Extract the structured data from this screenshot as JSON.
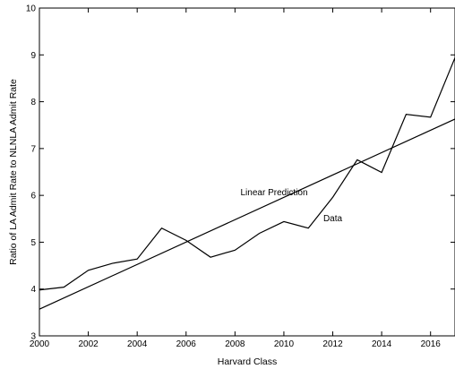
{
  "chart_data": {
    "type": "line",
    "xlabel": "Harvard Class",
    "ylabel": "Ratio of LA Admit Rate to NLNLA Admit Rate",
    "xlim": [
      2000,
      2017
    ],
    "ylim": [
      3,
      10
    ],
    "xticks": [
      "2000",
      "2002",
      "2004",
      "2006",
      "2008",
      "2010",
      "2012",
      "2014",
      "2016"
    ],
    "yticks": [
      "3",
      "4",
      "5",
      "6",
      "7",
      "8",
      "9",
      "10"
    ],
    "grid": false,
    "series": [
      {
        "name": "Data",
        "x": [
          2000,
          2001,
          2002,
          2003,
          2004,
          2005,
          2006,
          2007,
          2008,
          2009,
          2010,
          2011,
          2012,
          2013,
          2014,
          2015,
          2016,
          2017
        ],
        "y": [
          3.98,
          4.04,
          4.4,
          4.55,
          4.64,
          5.3,
          5.04,
          4.68,
          4.83,
          5.19,
          5.44,
          5.3,
          5.96,
          6.76,
          6.49,
          7.73,
          7.67,
          8.94
        ]
      },
      {
        "name": "Linear Prediction",
        "x": [
          2000,
          2017
        ],
        "y": [
          3.57,
          7.63
        ]
      }
    ],
    "annotations": [
      {
        "text": "Linear Prediction",
        "x": 2009.6,
        "y": 6.0
      },
      {
        "text": "Data",
        "x": 2012.0,
        "y": 5.45
      }
    ]
  }
}
